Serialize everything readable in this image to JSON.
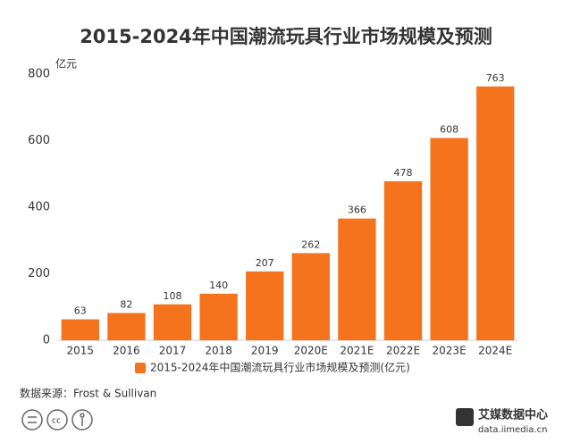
{
  "chart_data": {
    "type": "bar",
    "title": "2015-2024年中国潮流玩具行业市场规模及预测",
    "y_label": "亿元",
    "categories": [
      "2015",
      "2016",
      "2017",
      "2018",
      "2019",
      "2020E",
      "2021E",
      "2022E",
      "2023E",
      "2024E"
    ],
    "series": [
      {
        "name": "2015-2024年中国潮流玩具行业市场规模及预测(亿元)",
        "color": "#f5731c",
        "values": [
          63,
          82,
          108,
          140,
          207,
          262,
          366,
          478,
          608,
          763
        ]
      }
    ],
    "ylim": [
      0,
      800
    ],
    "yticks": [
      0,
      200,
      400,
      600,
      800
    ],
    "grid": false,
    "legend": "bottom"
  },
  "source": "数据来源：Frost & Sullivan",
  "brand": {
    "name": "艾媒数据中心",
    "url": "data.iimedia.cn"
  }
}
